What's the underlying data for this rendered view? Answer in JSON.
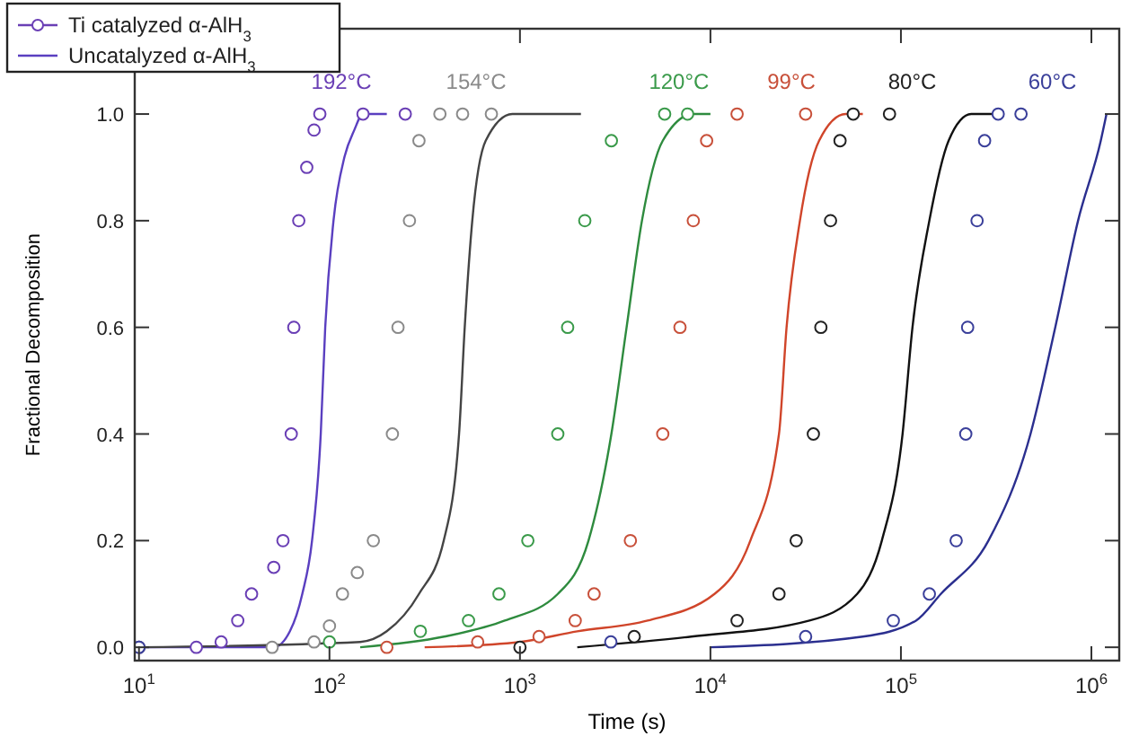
{
  "chart_data": {
    "type": "line",
    "xlabel": "Time (s)",
    "ylabel": "Fractional Decomposition",
    "log": "x",
    "grid": false,
    "legend": "top left",
    "xlim": [
      9.5,
      1400000
    ],
    "ylim": [
      -0.025,
      1.16
    ],
    "xticks": [
      {
        "value": 10,
        "label": "10$^{1}$"
      },
      {
        "value": 100,
        "label": "10$^{2}$"
      },
      {
        "value": 1000,
        "label": "10$^{3}$"
      },
      {
        "value": 10000,
        "label": "10$^{4}$"
      },
      {
        "value": 100000,
        "label": "10$^{5}$"
      },
      {
        "value": 1000000,
        "label": "10$^{6}$"
      }
    ],
    "yticks": [
      {
        "value": 0,
        "label": "0.0"
      },
      {
        "value": 0.2,
        "label": "0.2"
      },
      {
        "value": 0.4,
        "label": "0.4"
      },
      {
        "value": 0.6,
        "label": "0.6"
      },
      {
        "value": 0.8,
        "label": "0.8"
      },
      {
        "value": 1,
        "label": "1.0"
      }
    ],
    "annotations": [
      "192°C",
      "154°C",
      "120°C",
      "99°C",
      "80°C",
      "60°C"
    ],
    "series": [
      {
        "name": "Ti catalyzed α-AlH$_{3}$",
        "type": "scatter",
        "color": "#6a3fb5",
        "marker": "circle",
        "x": [
          10,
          20,
          27,
          33,
          39,
          51,
          57,
          63,
          65,
          69,
          76,
          83,
          89,
          150,
          250
        ],
        "values": [
          0,
          0,
          0.01,
          0.05,
          0.1,
          0.15,
          0.2,
          0.4,
          0.6,
          0.8,
          0.9,
          0.97,
          1,
          1,
          1
        ]
      },
      {
        "name": "Uncatalyzed α-AlH$_{3}$",
        "color": "#5a3fc0",
        "marker": "none",
        "x": [
          10,
          40,
          51,
          62,
          72,
          81,
          90,
          95,
          105,
          120,
          135,
          150,
          200
        ],
        "values": [
          0,
          0,
          0,
          0.03,
          0.1,
          0.2,
          0.4,
          0.6,
          0.8,
          0.92,
          0.97,
          1,
          1
        ]
      },
      {
        "color": "#8a8a8a",
        "type": "scatter",
        "marker": "circle",
        "x": [
          10,
          50,
          83,
          100,
          117,
          140,
          170,
          214,
          229,
          263,
          295,
          380,
          500,
          708
        ],
        "values": [
          0,
          0,
          0.01,
          0.04,
          0.1,
          0.14,
          0.2,
          0.4,
          0.6,
          0.8,
          0.95,
          1,
          1,
          1
        ]
      },
      {
        "color": "#444444",
        "marker": "none",
        "x": [
          10,
          145,
          200,
          295,
          398,
          479,
          513,
          562,
          661,
          912,
          2090
        ],
        "values": [
          0,
          0.01,
          0.03,
          0.1,
          0.2,
          0.4,
          0.6,
          0.8,
          0.95,
          1,
          1
        ]
      },
      {
        "color": "#3a9a4a",
        "type": "scatter",
        "marker": "circle",
        "x": [
          100,
          300,
          537,
          776,
          1100,
          1580,
          1780,
          2190,
          3020,
          5750,
          7590
        ],
        "values": [
          0.01,
          0.03,
          0.05,
          0.1,
          0.2,
          0.4,
          0.6,
          0.8,
          0.95,
          1,
          1
        ]
      },
      {
        "color": "#2e8b3e",
        "marker": "none",
        "x": [
          145,
          400,
          832,
          1580,
          2290,
          3020,
          3630,
          4370,
          5620,
          8130,
          10000
        ],
        "values": [
          0,
          0.02,
          0.05,
          0.1,
          0.2,
          0.4,
          0.6,
          0.8,
          0.95,
          1,
          1
        ]
      },
      {
        "color": "#c8503a",
        "type": "scatter",
        "marker": "circle",
        "x": [
          200,
          600,
          1260,
          1950,
          2450,
          3800,
          5620,
          6920,
          8130,
          9550,
          13800,
          31600
        ],
        "values": [
          0,
          0.01,
          0.02,
          0.05,
          0.1,
          0.2,
          0.4,
          0.6,
          0.8,
          0.95,
          1,
          1
        ]
      },
      {
        "color": "#d0452a",
        "marker": "none",
        "x": [
          316,
          1000,
          2000,
          4680,
          10500,
          16200,
          22900,
          25100,
          29500,
          37200,
          51300,
          63100
        ],
        "values": [
          0,
          0.01,
          0.03,
          0.05,
          0.1,
          0.2,
          0.4,
          0.6,
          0.8,
          0.95,
          1,
          1
        ]
      },
      {
        "color": "#222222",
        "type": "scatter",
        "marker": "circle",
        "x": [
          1000,
          3980,
          13800,
          22900,
          28200,
          34700,
          38000,
          42700,
          47900,
          56200,
          87100
        ],
        "values": [
          0,
          0.02,
          0.05,
          0.1,
          0.2,
          0.4,
          0.6,
          0.8,
          0.95,
          1,
          1
        ]
      },
      {
        "color": "#111111",
        "marker": "none",
        "x": [
          2000,
          7940,
          33100,
          58900,
          79400,
          102000,
          115000,
          141000,
          178000,
          234000,
          324000
        ],
        "values": [
          0,
          0.02,
          0.05,
          0.1,
          0.2,
          0.4,
          0.6,
          0.8,
          0.95,
          1,
          1
        ]
      },
      {
        "color": "#3a3f9a",
        "type": "scatter",
        "marker": "circle",
        "x": [
          10,
          3000,
          31600,
          91200,
          141000,
          195000,
          219000,
          224000,
          251000,
          275000,
          324000,
          427000
        ],
        "values": [
          0,
          0.01,
          0.02,
          0.05,
          0.1,
          0.2,
          0.4,
          0.6,
          0.8,
          0.95,
          1,
          1
        ]
      },
      {
        "color": "#2b2f8f",
        "marker": "none",
        "x": [
          10000,
          63100,
          120000,
          162000,
          288000,
          479000,
          646000,
          851000,
          1120000,
          1200000
        ],
        "values": [
          0,
          0.02,
          0.05,
          0.1,
          0.2,
          0.4,
          0.6,
          0.8,
          0.95,
          1
        ]
      }
    ]
  }
}
